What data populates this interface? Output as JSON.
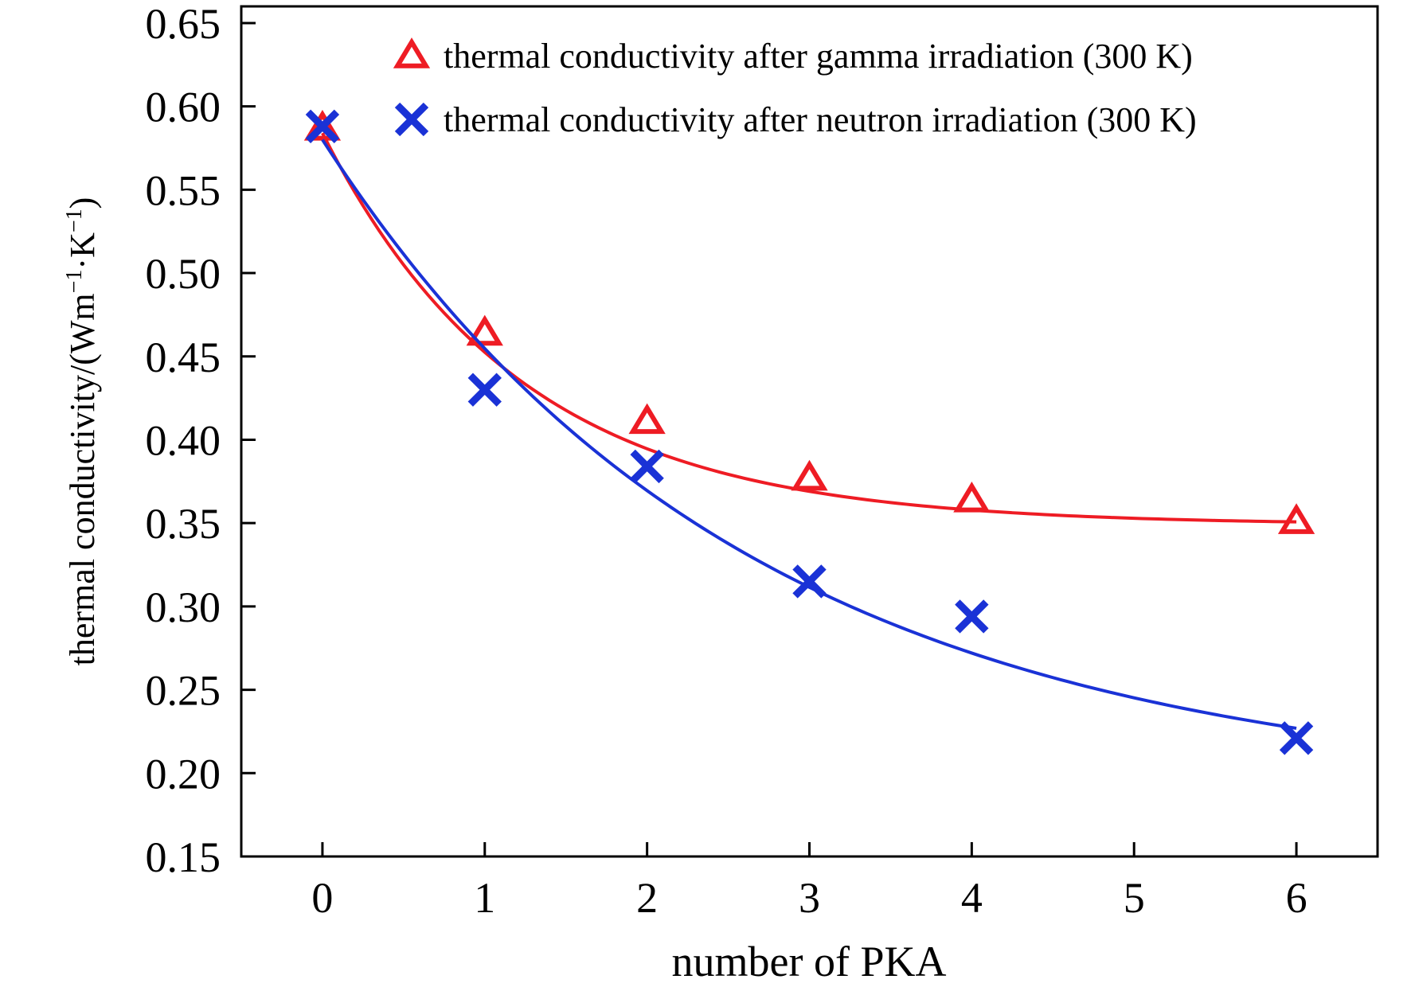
{
  "chart_data": {
    "type": "scatter",
    "title": "",
    "xlabel": "number of PKA",
    "ylabel": {
      "prefix": "thermal conductivity/(Wm",
      "sup1": "−1",
      "mid": "·K",
      "sup2": "−1",
      "suffix": ")"
    },
    "xlim": [
      -0.5,
      6.5
    ],
    "ylim": [
      0.15,
      0.66
    ],
    "x_ticks": [
      "0",
      "1",
      "2",
      "3",
      "4",
      "5",
      "6"
    ],
    "y_ticks": [
      "0.15",
      "0.20",
      "0.25",
      "0.30",
      "0.35",
      "0.40",
      "0.45",
      "0.50",
      "0.55",
      "0.60",
      "0.65"
    ],
    "grid": false,
    "legend_position": "top-right",
    "series": [
      {
        "name": "thermal conductivity after gamma irradiation (300 K)",
        "marker": "triangle",
        "color": "#ee1c24",
        "x": [
          0,
          1,
          2,
          3,
          4,
          6
        ],
        "y": [
          0.587,
          0.464,
          0.411,
          0.377,
          0.364,
          0.351
        ],
        "fit": {
          "asymptote": 0.349,
          "amplitude": 0.235,
          "rate": 0.82
        }
      },
      {
        "name": "thermal conductivity after neutron irradiation (300 K)",
        "marker": "x",
        "color": "#1a32d6",
        "x": [
          0,
          1,
          2,
          3,
          4,
          6
        ],
        "y": [
          0.588,
          0.43,
          0.384,
          0.315,
          0.294,
          0.221
        ],
        "fit": {
          "asymptote": 0.188,
          "amplitude": 0.392,
          "rate": 0.385
        }
      }
    ]
  }
}
